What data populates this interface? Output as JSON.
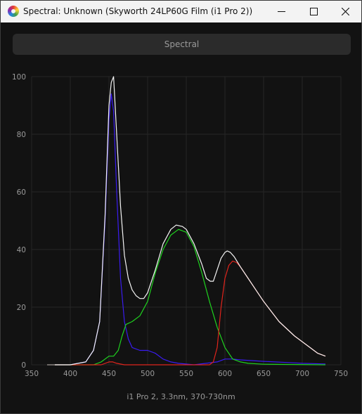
{
  "window": {
    "title": "Spectral: Unknown (Skyworth 24LP60G Film (i1 Pro 2))"
  },
  "toolbar": {
    "spectral_label": "Spectral"
  },
  "caption": "i1 Pro 2, 3.3nm, 370-730nm",
  "colors": {
    "background": "#121212",
    "grid": "#262626",
    "white": "#f5f5f5",
    "red": "#e0241c",
    "green": "#1fd11f",
    "blue": "#3a1cf0"
  },
  "chart_data": {
    "type": "line",
    "xlim": [
      350,
      750
    ],
    "ylim": [
      0,
      100
    ],
    "x_ticks": [
      350,
      400,
      450,
      500,
      550,
      600,
      650,
      700,
      750
    ],
    "y_ticks": [
      0,
      20,
      40,
      60,
      80,
      100
    ],
    "grid": true,
    "series": [
      {
        "color": "blue",
        "points": [
          [
            370,
            0
          ],
          [
            400,
            0
          ],
          [
            420,
            1
          ],
          [
            430,
            5
          ],
          [
            438,
            15
          ],
          [
            445,
            50
          ],
          [
            450,
            85
          ],
          [
            453,
            94
          ],
          [
            456,
            88
          ],
          [
            460,
            60
          ],
          [
            465,
            30
          ],
          [
            470,
            15
          ],
          [
            475,
            9
          ],
          [
            480,
            6
          ],
          [
            490,
            5
          ],
          [
            500,
            5
          ],
          [
            510,
            4
          ],
          [
            520,
            2
          ],
          [
            530,
            1
          ],
          [
            540,
            0.5
          ],
          [
            560,
            0
          ],
          [
            590,
            1
          ],
          [
            600,
            2
          ],
          [
            610,
            2
          ],
          [
            620,
            1.7
          ],
          [
            650,
            1.2
          ],
          [
            680,
            0.8
          ],
          [
            700,
            0.5
          ],
          [
            730,
            0.3
          ]
        ]
      },
      {
        "color": "green",
        "points": [
          [
            370,
            0
          ],
          [
            430,
            0
          ],
          [
            440,
            1
          ],
          [
            450,
            3
          ],
          [
            456,
            3
          ],
          [
            462,
            5
          ],
          [
            467,
            10
          ],
          [
            472,
            14
          ],
          [
            480,
            15
          ],
          [
            490,
            17
          ],
          [
            500,
            22
          ],
          [
            510,
            32
          ],
          [
            520,
            40
          ],
          [
            530,
            45
          ],
          [
            540,
            47
          ],
          [
            550,
            46
          ],
          [
            560,
            41
          ],
          [
            570,
            32
          ],
          [
            580,
            22
          ],
          [
            590,
            13
          ],
          [
            600,
            6
          ],
          [
            610,
            2
          ],
          [
            620,
            1
          ],
          [
            630,
            0.5
          ],
          [
            650,
            0.2
          ],
          [
            730,
            0
          ]
        ]
      },
      {
        "color": "red",
        "points": [
          [
            370,
            0
          ],
          [
            440,
            0
          ],
          [
            450,
            1
          ],
          [
            455,
            1
          ],
          [
            460,
            0.5
          ],
          [
            470,
            0
          ],
          [
            580,
            0
          ],
          [
            585,
            1
          ],
          [
            590,
            6
          ],
          [
            595,
            20
          ],
          [
            600,
            30
          ],
          [
            605,
            34.5
          ],
          [
            610,
            36
          ],
          [
            615,
            35.5
          ],
          [
            620,
            34
          ],
          [
            630,
            30
          ],
          [
            640,
            26
          ],
          [
            650,
            22
          ],
          [
            670,
            15
          ],
          [
            690,
            10
          ],
          [
            710,
            6
          ],
          [
            720,
            4
          ],
          [
            730,
            3
          ]
        ]
      },
      {
        "color": "white",
        "points": [
          [
            370,
            0
          ],
          [
            400,
            0
          ],
          [
            420,
            1
          ],
          [
            430,
            5
          ],
          [
            438,
            15
          ],
          [
            445,
            52
          ],
          [
            450,
            90
          ],
          [
            453,
            98
          ],
          [
            456,
            100
          ],
          [
            460,
            80
          ],
          [
            465,
            55
          ],
          [
            470,
            38
          ],
          [
            475,
            30
          ],
          [
            480,
            26
          ],
          [
            485,
            24
          ],
          [
            490,
            23
          ],
          [
            495,
            23
          ],
          [
            500,
            25
          ],
          [
            510,
            33
          ],
          [
            520,
            42
          ],
          [
            530,
            47
          ],
          [
            537,
            48.5
          ],
          [
            545,
            48
          ],
          [
            550,
            47
          ],
          [
            560,
            42
          ],
          [
            570,
            35
          ],
          [
            576,
            30
          ],
          [
            581,
            29
          ],
          [
            585,
            29
          ],
          [
            590,
            33
          ],
          [
            595,
            37
          ],
          [
            600,
            39
          ],
          [
            603,
            39.5
          ],
          [
            607,
            39
          ],
          [
            612,
            37.5
          ],
          [
            620,
            34
          ],
          [
            630,
            30
          ],
          [
            640,
            26
          ],
          [
            650,
            22
          ],
          [
            670,
            15
          ],
          [
            690,
            10
          ],
          [
            710,
            6
          ],
          [
            720,
            4
          ],
          [
            730,
            3
          ]
        ]
      },
      {
        "color": "#666666",
        "points": [
          [
            370,
            0
          ],
          [
            380,
            0
          ]
        ]
      }
    ]
  }
}
